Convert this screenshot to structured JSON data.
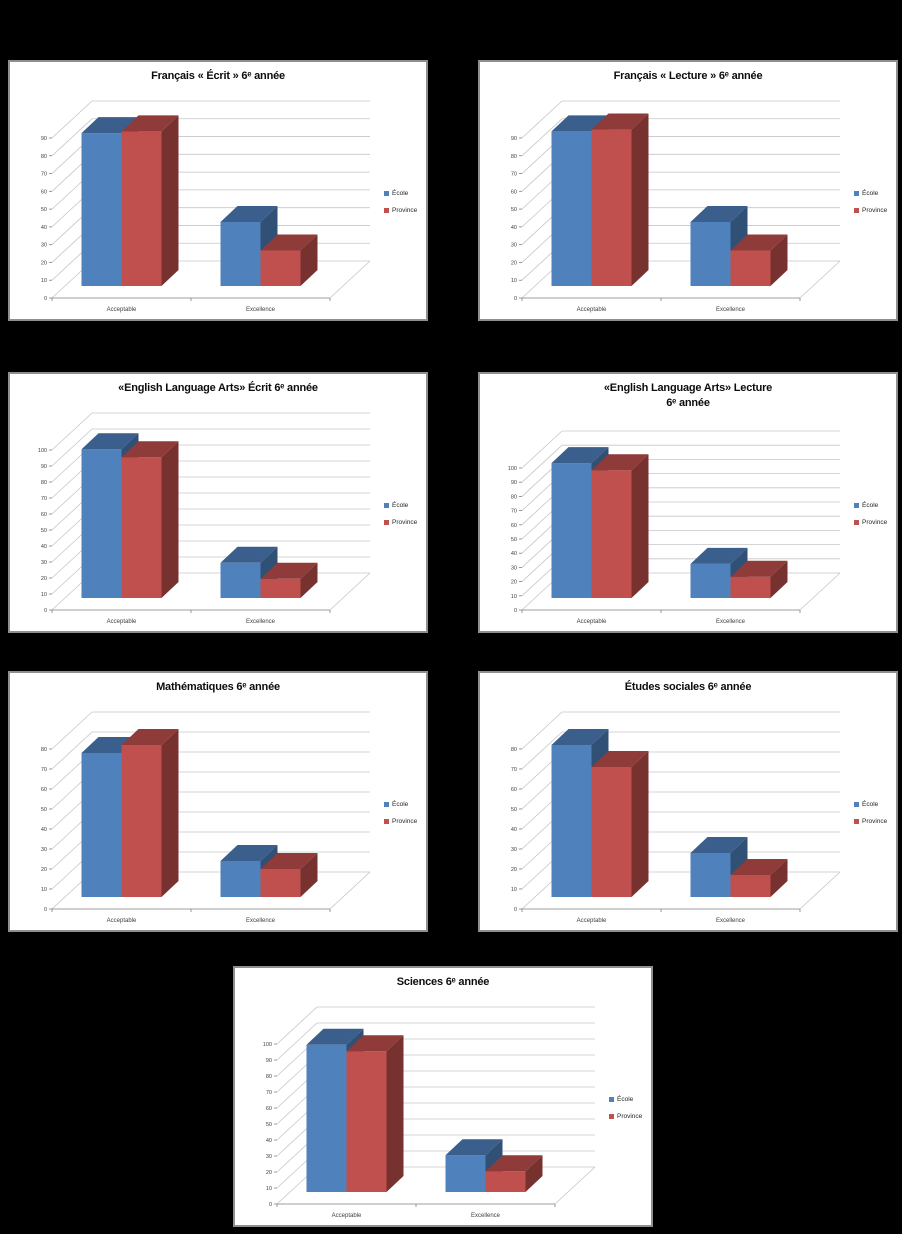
{
  "window": {
    "background": "#000000",
    "description": "Seven 3-D clustered column charts of grade-6 provincial achievement results, white panels on a black page"
  },
  "palette": {
    "ecole_blue": "#4F81BD",
    "province_red": "#C0504D",
    "gridline": "#C6C6C6",
    "axis_line": "#7F7F7F",
    "axis_text": "#3F3F3F",
    "panel_border": "#8F8F8F"
  },
  "legend": {
    "position": "right",
    "items": [
      "École",
      "Province"
    ]
  },
  "chart_data": [
    {
      "type": "bar",
      "variant": "3d-clustered-column",
      "title": "Français « Écrit » 6ᵉ année",
      "categories": [
        "Acceptable",
        "Excellence"
      ],
      "series": [
        {
          "name": "École",
          "color": "#4F81BD",
          "values": [
            86,
            36
          ]
        },
        {
          "name": "Province",
          "color": "#C0504D",
          "values": [
            87,
            20
          ]
        }
      ],
      "ylim": [
        0,
        90
      ],
      "ytick_step": 10,
      "grid": true,
      "legend_position": "right"
    },
    {
      "type": "bar",
      "variant": "3d-clustered-column",
      "title": "Français « Lecture » 6ᵉ année",
      "categories": [
        "Acceptable",
        "Excellence"
      ],
      "series": [
        {
          "name": "École",
          "color": "#4F81BD",
          "values": [
            87,
            36
          ]
        },
        {
          "name": "Province",
          "color": "#C0504D",
          "values": [
            88,
            20
          ]
        }
      ],
      "ylim": [
        0,
        90
      ],
      "ytick_step": 10,
      "grid": true,
      "legend_position": "right"
    },
    {
      "type": "bar",
      "variant": "3d-clustered-column",
      "title": "«English Language Arts» Écrit 6ᵉ année",
      "categories": [
        "Acceptable",
        "Excellence"
      ],
      "series": [
        {
          "name": "École",
          "color": "#4F81BD",
          "values": [
            93,
            22
          ]
        },
        {
          "name": "Province",
          "color": "#C0504D",
          "values": [
            88,
            12
          ]
        }
      ],
      "ylim": [
        0,
        100
      ],
      "ytick_step": 10,
      "grid": true,
      "legend_position": "right"
    },
    {
      "type": "bar",
      "variant": "3d-clustered-column",
      "title": "«English Language Arts» Lecture\n6ᵉ année",
      "categories": [
        "Acceptable",
        "Excellence"
      ],
      "series": [
        {
          "name": "École",
          "color": "#4F81BD",
          "values": [
            95,
            24
          ]
        },
        {
          "name": "Province",
          "color": "#C0504D",
          "values": [
            90,
            15
          ]
        }
      ],
      "ylim": [
        0,
        100
      ],
      "ytick_step": 10,
      "grid": true,
      "legend_position": "right"
    },
    {
      "type": "bar",
      "variant": "3d-clustered-column",
      "title": "Mathématiques 6ᵉ année",
      "categories": [
        "Acceptable",
        "Excellence"
      ],
      "series": [
        {
          "name": "École",
          "color": "#4F81BD",
          "values": [
            72,
            18
          ]
        },
        {
          "name": "Province",
          "color": "#C0504D",
          "values": [
            76,
            14
          ]
        }
      ],
      "ylim": [
        0,
        80
      ],
      "ytick_step": 10,
      "grid": true,
      "legend_position": "right"
    },
    {
      "type": "bar",
      "variant": "3d-clustered-column",
      "title": "Études sociales 6ᵉ année",
      "categories": [
        "Acceptable",
        "Excellence"
      ],
      "series": [
        {
          "name": "École",
          "color": "#4F81BD",
          "values": [
            76,
            22
          ]
        },
        {
          "name": "Province",
          "color": "#C0504D",
          "values": [
            65,
            11
          ]
        }
      ],
      "ylim": [
        0,
        80
      ],
      "ytick_step": 10,
      "grid": true,
      "legend_position": "right"
    },
    {
      "type": "bar",
      "variant": "3d-clustered-column",
      "title": "Sciences 6ᵉ année",
      "categories": [
        "Acceptable",
        "Excellence"
      ],
      "series": [
        {
          "name": "École",
          "color": "#4F81BD",
          "values": [
            92,
            23
          ]
        },
        {
          "name": "Province",
          "color": "#C0504D",
          "values": [
            88,
            13
          ]
        }
      ],
      "ylim": [
        0,
        100
      ],
      "ytick_step": 10,
      "grid": true,
      "legend_position": "right"
    }
  ]
}
